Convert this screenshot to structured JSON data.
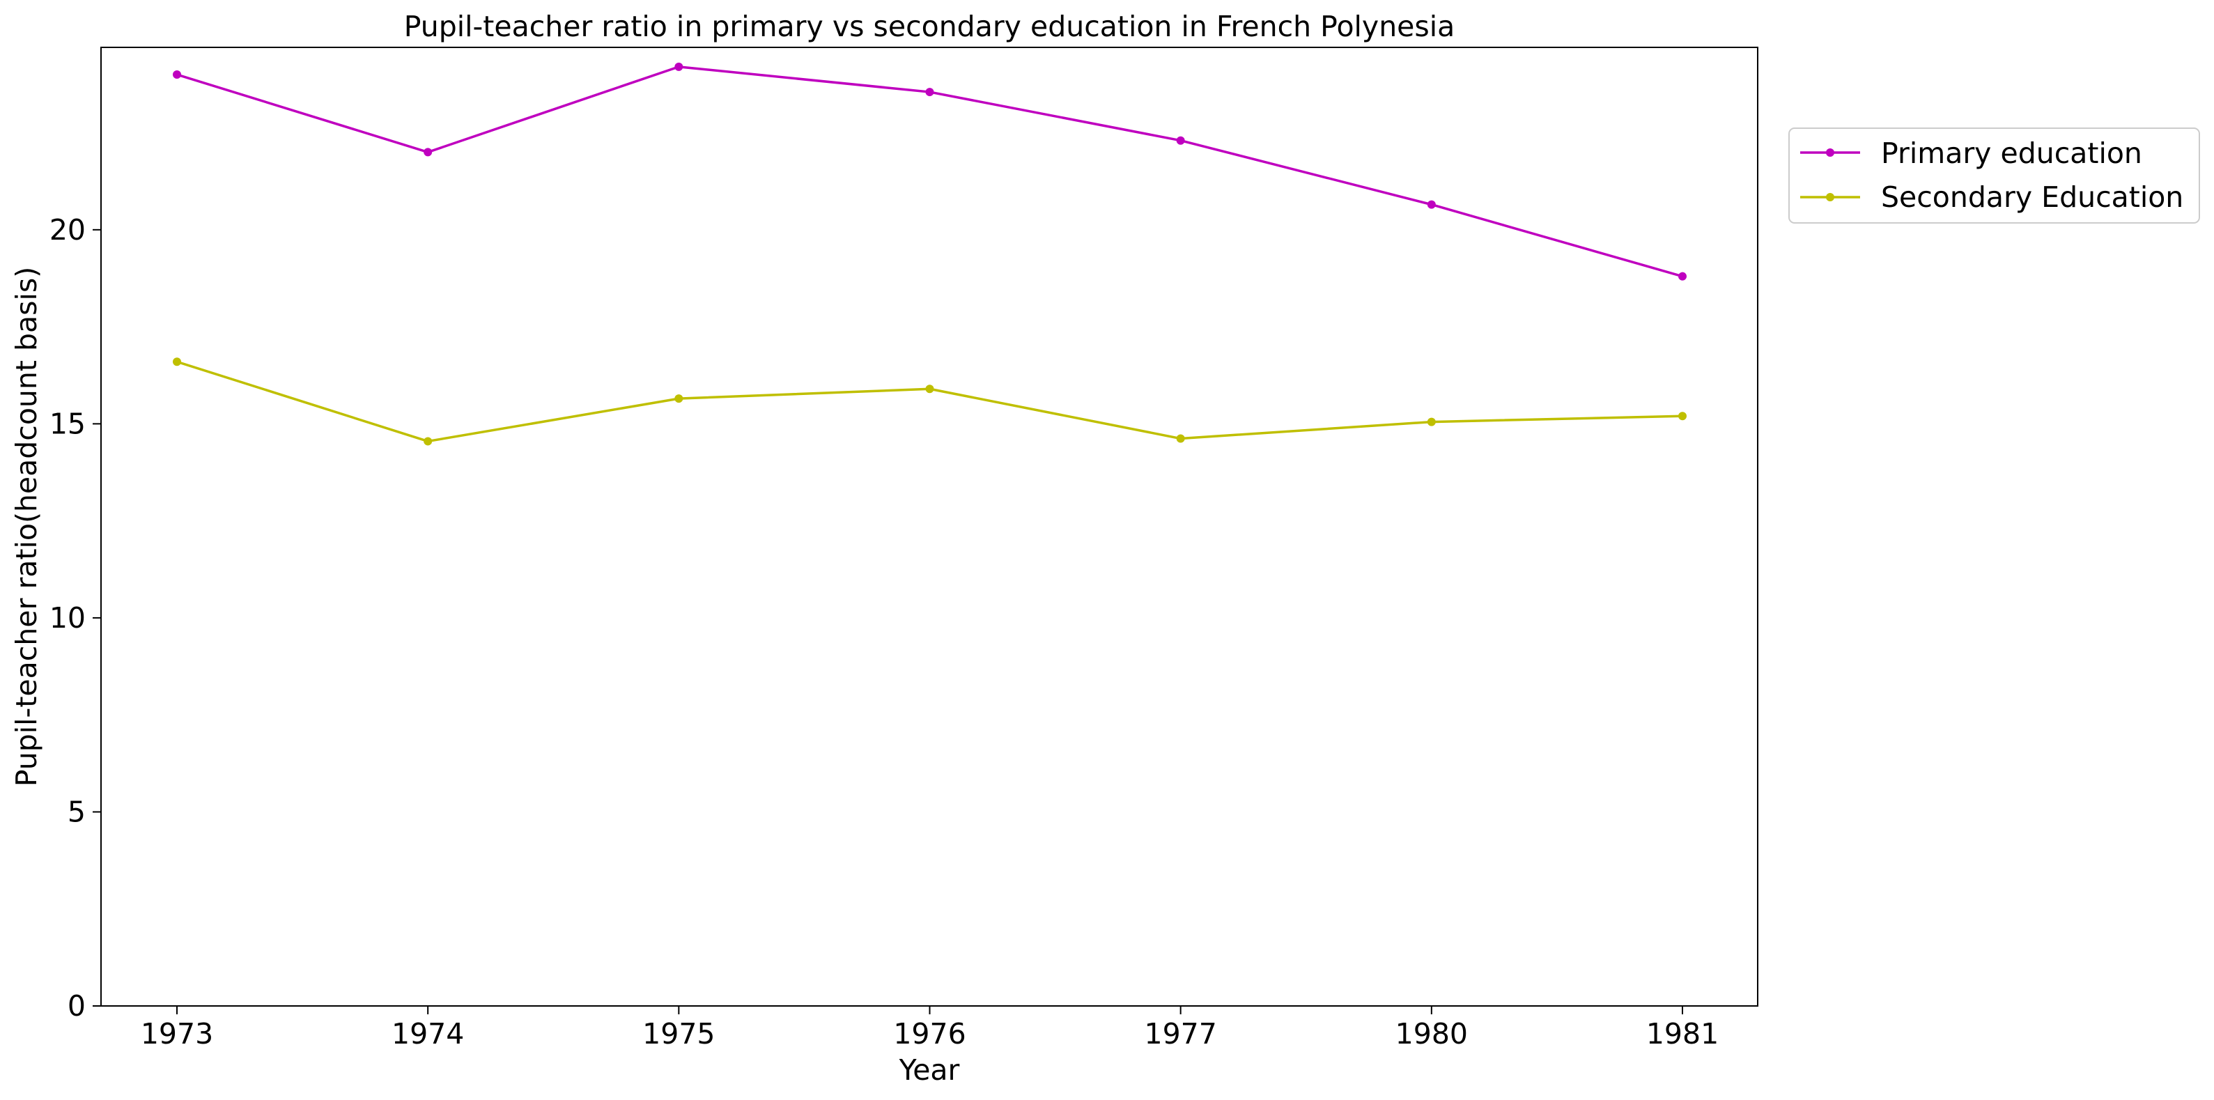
{
  "chart_data": {
    "type": "line",
    "title": "Pupil-teacher ratio in primary vs secondary education in French Polynesia",
    "xlabel": "Year",
    "ylabel": "Pupil-teacher ratio(headcount basis)",
    "categories": [
      "1973",
      "1974",
      "1975",
      "1976",
      "1977",
      "1980",
      "1981"
    ],
    "yticks": [
      0,
      5,
      10,
      15,
      20
    ],
    "ylim": [
      0,
      24.7
    ],
    "grid": false,
    "legend_position": "outside-right",
    "series": [
      {
        "name": "Primary education",
        "color": "#bf00bf",
        "values": [
          24.0,
          22.0,
          24.2,
          23.55,
          22.3,
          20.65,
          18.8
        ]
      },
      {
        "name": "Secondary Education",
        "color": "#bfbf00",
        "values": [
          16.6,
          14.55,
          15.65,
          15.9,
          14.62,
          15.05,
          15.2
        ]
      }
    ]
  }
}
